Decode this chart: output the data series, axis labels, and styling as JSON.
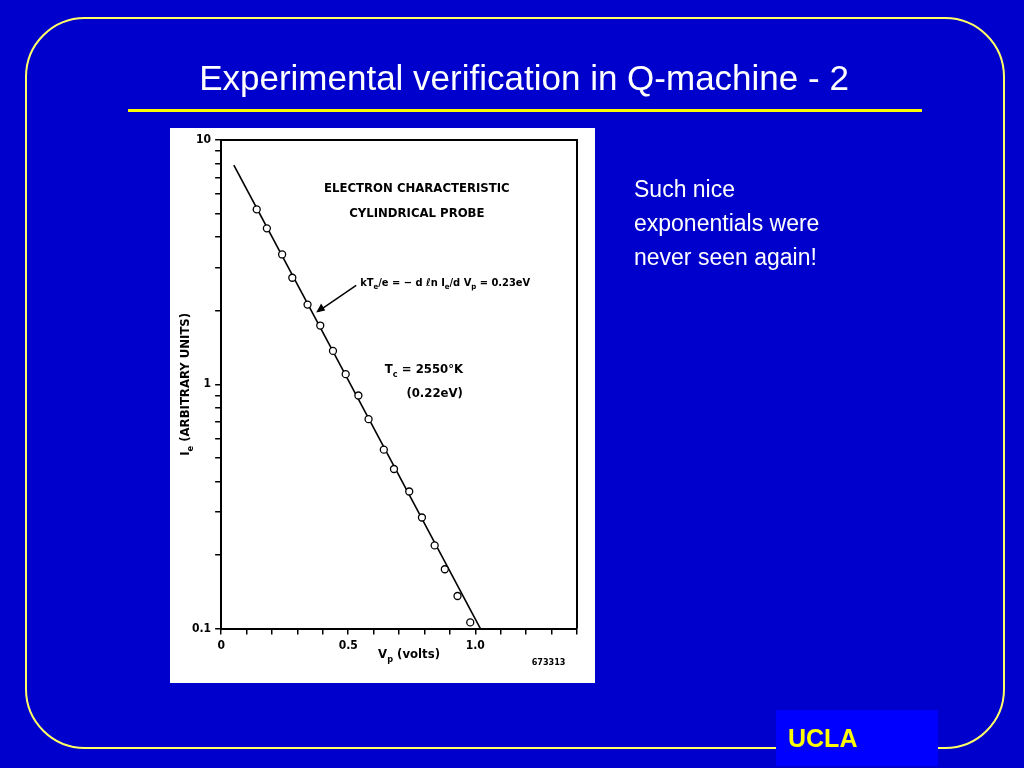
{
  "chart_data": {
    "type": "scatter",
    "title": "Experimental verification in Q-machine - 2",
    "xlabel": "V$_{p}$ (volts)",
    "ylabel": "I$_{e}$ (ARBITRARY UNITS)",
    "series": [
      {
        "type": "scatter",
        "color": "#000000",
        "marker": "circle",
        "x": [
          0.14,
          0.18,
          0.24,
          0.28,
          0.34,
          0.39,
          0.44,
          0.49,
          0.54,
          0.58,
          0.64,
          0.68,
          0.74,
          0.79,
          0.84,
          0.88,
          0.93,
          0.98
        ],
        "values": [
          5.2,
          4.35,
          3.4,
          2.73,
          2.12,
          1.74,
          1.37,
          1.1,
          0.9,
          0.72,
          0.54,
          0.45,
          0.364,
          0.285,
          0.219,
          0.175,
          0.136,
          0.106
        ]
      },
      {
        "type": "line",
        "color": "#000000",
        "marker": "none",
        "line_style": "solid",
        "x": [
          0.05,
          1.02
        ],
        "values": [
          7.9,
          0.1
        ]
      }
    ],
    "log": "y",
    "xlim": [
      0,
      1.4
    ],
    "ylim": [
      0.1,
      10
    ],
    "xticks": [
      0,
      {
        "value": 0.1,
        "label": null
      },
      {
        "value": 0.2,
        "label": null
      },
      {
        "value": 0.3,
        "label": null
      },
      {
        "value": 0.4,
        "label": null
      },
      0.5,
      {
        "value": 0.6,
        "label": null
      },
      {
        "value": 0.7,
        "label": null
      },
      {
        "value": 0.8,
        "label": null
      },
      {
        "value": 0.9,
        "label": null
      },
      {
        "value": 1,
        "label": "1.0"
      },
      {
        "value": 1.1,
        "label": null
      },
      {
        "value": 1.2,
        "label": null
      },
      {
        "value": 1.3,
        "label": null
      },
      {
        "value": 1.4,
        "label": null
      }
    ],
    "yticks": [
      0.1,
      {
        "value": 0.2,
        "label": null
      },
      {
        "value": 0.3,
        "label": null
      },
      {
        "value": 0.4,
        "label": null
      },
      {
        "value": 0.5,
        "label": null
      },
      {
        "value": 0.6,
        "label": null
      },
      {
        "value": 0.7,
        "label": null
      },
      {
        "value": 0.8,
        "label": null
      },
      {
        "value": 0.9,
        "label": null
      },
      1,
      {
        "value": 2,
        "label": null
      },
      {
        "value": 3,
        "label": null
      },
      {
        "value": 4,
        "label": null
      },
      {
        "value": 5,
        "label": null
      },
      {
        "value": 6,
        "label": null
      },
      {
        "value": 7,
        "label": null
      },
      {
        "value": 8,
        "label": null
      },
      {
        "value": 9,
        "label": null
      },
      10
    ],
    "grid": false,
    "legend": false,
    "annotations": [
      "ELECTRON CHARACTERISTIC",
      "CYLINDRICAL PROBE",
      {
        "text": "kT$_{e}$/e = − d ℓn I$_{e}$/d V$_{p}$ = 0.23eV",
        "x": 0.37,
        "y": 1.95
      },
      "T$_{c}$ = 2550°K",
      "(0.22eV)",
      "673313",
      "Such nice exponentials were never seen again!",
      "UCLA"
    ]
  }
}
